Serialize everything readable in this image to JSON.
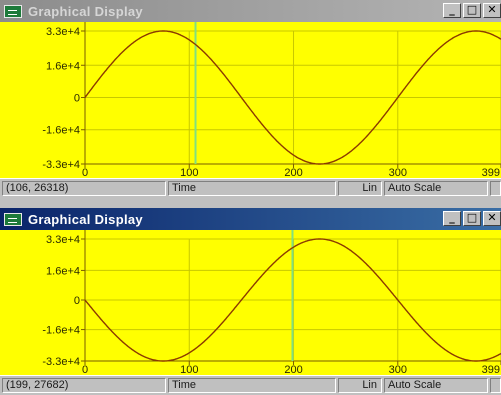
{
  "windows": [
    {
      "id": "top",
      "title": "Graphical Display",
      "active": false,
      "buttons": {
        "minimize": "_",
        "maximize": "□",
        "close": "✕"
      },
      "status": {
        "coords": "(106, 26318)",
        "axis_label": "Time",
        "scale": "Lin",
        "auto_scale": "Auto Scale"
      },
      "chart_data": {
        "type": "line",
        "x_ticks": [
          0,
          100,
          200,
          300,
          399
        ],
        "x_tick_labels": [
          "0",
          "100",
          "200",
          "300",
          "399"
        ],
        "y_ticks": [
          33000,
          16000,
          0,
          -16000,
          -33000
        ],
        "y_tick_labels": [
          "3.3e+4",
          "1.6e+4",
          "0",
          "-1.6e+4",
          "-3.3e+4"
        ],
        "xlim": [
          0,
          399
        ],
        "ylim": [
          -33000,
          33000
        ],
        "grid": true,
        "cursor_x": 106,
        "series": [
          {
            "function": "sine",
            "amplitude": 33000,
            "period": 300,
            "phase": 0,
            "color": "#8b3a00"
          }
        ],
        "colors": {
          "background": "#ffff00",
          "grid": "#c8c800",
          "cursor": "#80e080",
          "axis": "#7a5c00"
        }
      }
    },
    {
      "id": "bottom",
      "title": "Graphical Display",
      "active": true,
      "buttons": {
        "minimize": "_",
        "maximize": "□",
        "close": "✕"
      },
      "status": {
        "coords": "(199, 27682)",
        "axis_label": "Time",
        "scale": "Lin",
        "auto_scale": "Auto Scale"
      },
      "chart_data": {
        "type": "line",
        "x_ticks": [
          0,
          100,
          200,
          300,
          399
        ],
        "x_tick_labels": [
          "0",
          "100",
          "200",
          "300",
          "399"
        ],
        "y_ticks": [
          33000,
          16000,
          0,
          -16000,
          -33000
        ],
        "y_tick_labels": [
          "3.3e+4",
          "1.6e+4",
          "0",
          "-1.6e+4",
          "-3.3e+4"
        ],
        "xlim": [
          0,
          399
        ],
        "ylim": [
          -33000,
          33000
        ],
        "grid": true,
        "cursor_x": 199,
        "series": [
          {
            "function": "sine",
            "amplitude": -33000,
            "period": 300,
            "phase": 0,
            "color": "#8b3a00"
          }
        ],
        "colors": {
          "background": "#ffff00",
          "grid": "#c8c800",
          "cursor": "#80e080",
          "axis": "#7a5c00"
        }
      }
    }
  ]
}
